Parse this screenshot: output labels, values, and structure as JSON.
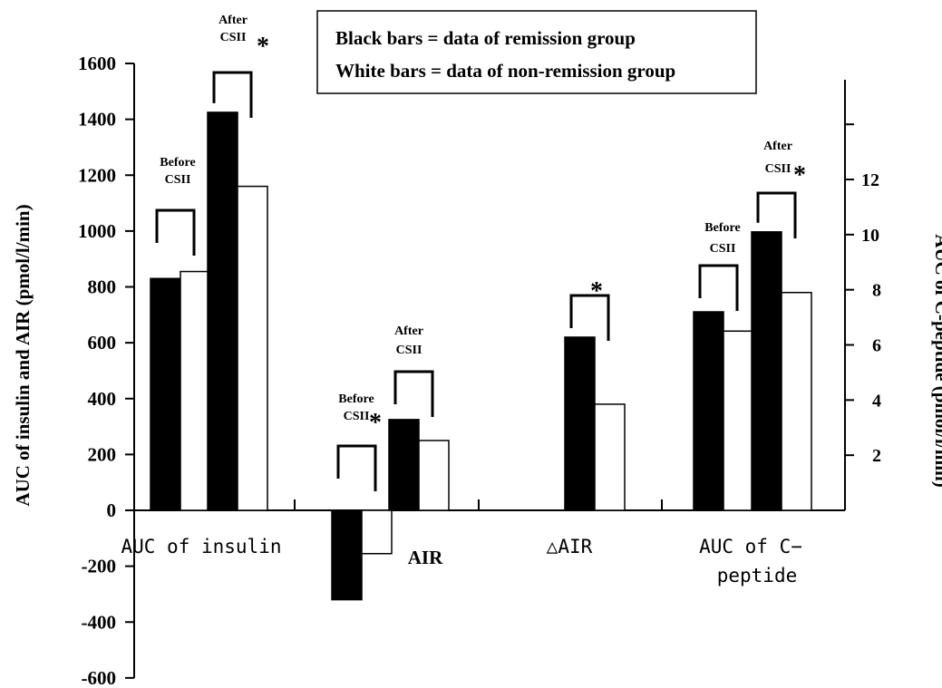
{
  "chart_data": {
    "type": "bar",
    "legend": {
      "lines": [
        "Black bars = data of remission group",
        "White bars = data of non-remission group"
      ],
      "position": "top-center"
    },
    "y_left": {
      "label": "AUC of insulin and AIR (pmol/l/min)",
      "range": [
        -600,
        1600
      ],
      "ticks": [
        "1600",
        "1400",
        "1200",
        "1000",
        "800",
        "600",
        "400",
        "200",
        "0",
        "-200",
        "-400",
        "-600"
      ]
    },
    "y_right": {
      "label": "AUC of C-peptide (pmol/l/min)",
      "range": [
        0,
        16
      ],
      "ticks": [
        "12",
        "10",
        "8",
        "6",
        "4",
        "2"
      ]
    },
    "groups": [
      {
        "label": "AUC of insulin",
        "label_style": "mono",
        "axis": "left",
        "sub": [
          {
            "label": [
              "Before",
              "CSII"
            ],
            "star": false,
            "remission": 830,
            "non_remission": 855
          },
          {
            "label": [
              "After",
              "CSII"
            ],
            "star": true,
            "remission": 1425,
            "non_remission": 1160
          }
        ]
      },
      {
        "label": "AIR",
        "label_style": "bold",
        "axis": "left",
        "sub": [
          {
            "label": [
              "Before",
              "CSII"
            ],
            "star": true,
            "remission": -320,
            "non_remission": -155
          },
          {
            "label": [
              "After",
              "CSII"
            ],
            "star": false,
            "remission": 325,
            "non_remission": 250
          }
        ]
      },
      {
        "label": "△AIR",
        "label_style": "mono",
        "axis": "left",
        "sub": [
          {
            "label": [],
            "star": true,
            "remission": 620,
            "non_remission": 380
          }
        ]
      },
      {
        "label": "AUC of C-peptide",
        "label_lines": [
          "AUC of C−",
          "peptide"
        ],
        "label_style": "mono",
        "axis": "right",
        "sub": [
          {
            "label": [
              "Before",
              "CSII"
            ],
            "star": false,
            "remission": 7.2,
            "non_remission": 6.5
          },
          {
            "label": [
              "After",
              "CSII"
            ],
            "star": true,
            "remission": 10.1,
            "non_remission": 7.9
          }
        ]
      }
    ],
    "colors": {
      "remission": "#000000",
      "non_remission": "#ffffff",
      "outline": "#000000"
    }
  }
}
